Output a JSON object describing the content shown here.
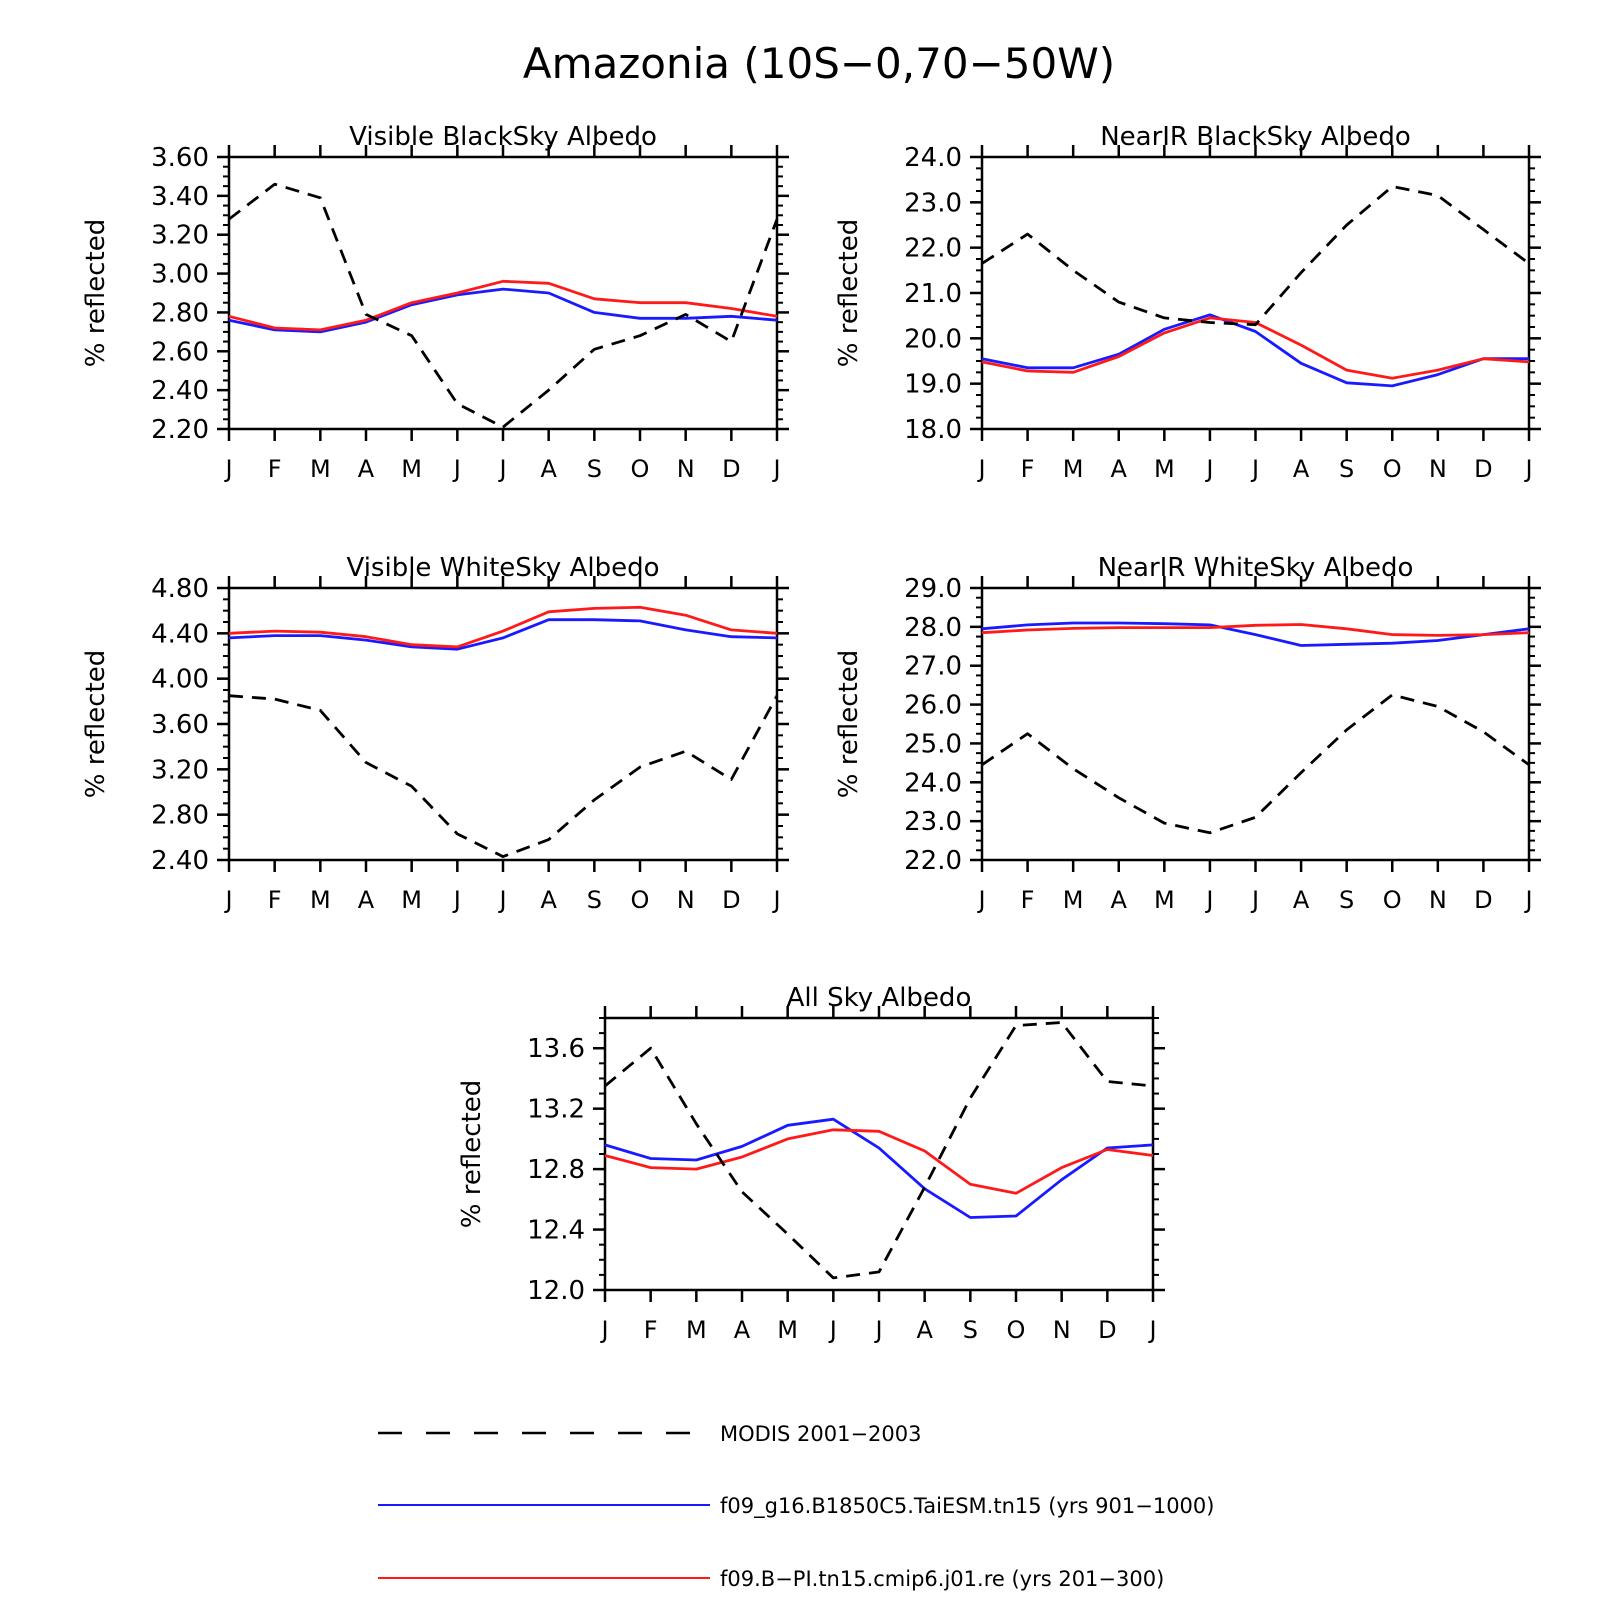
{
  "title": "Amazonia (10S−0,70−50W)",
  "months": [
    "J",
    "F",
    "M",
    "A",
    "M",
    "J",
    "J",
    "A",
    "S",
    "O",
    "N",
    "D",
    "J"
  ],
  "ylabel": "% reflected",
  "legend": [
    {
      "key": "modis",
      "label": "MODIS 2001−2003",
      "color": "#000000",
      "dash": true
    },
    {
      "key": "taiesm",
      "label": "f09_g16.B1850C5.TaiESM.tn15 (yrs 901−1000)",
      "color": "#1a1aff",
      "dash": false
    },
    {
      "key": "cmip6",
      "label": "f09.B−PI.tn15.cmip6.j01.re (yrs 201−300)",
      "color": "#ff1a1a",
      "dash": false
    }
  ],
  "chart_data": [
    {
      "type": "line",
      "title": "Visible BlackSky Albedo",
      "ylabel": "% reflected",
      "categories": [
        "J",
        "F",
        "M",
        "A",
        "M",
        "J",
        "J",
        "A",
        "S",
        "O",
        "N",
        "D",
        "J"
      ],
      "ylim": [
        2.2,
        3.6
      ],
      "yticks": [
        "2.20",
        "2.40",
        "2.60",
        "2.80",
        "3.00",
        "3.20",
        "3.40",
        "3.60"
      ],
      "series": [
        {
          "name": "MODIS 2001−2003",
          "values": [
            3.28,
            3.46,
            3.39,
            2.79,
            2.68,
            2.33,
            2.21,
            2.4,
            2.61,
            2.68,
            2.79,
            2.65,
            3.28
          ]
        },
        {
          "name": "f09_g16.B1850C5.TaiESM.tn15 (yrs 901−1000)",
          "values": [
            2.76,
            2.71,
            2.7,
            2.75,
            2.84,
            2.89,
            2.92,
            2.9,
            2.8,
            2.77,
            2.77,
            2.78,
            2.76
          ]
        },
        {
          "name": "f09.B−PI.tn15.cmip6.j01.re (yrs 201−300)",
          "values": [
            2.78,
            2.72,
            2.71,
            2.76,
            2.85,
            2.9,
            2.96,
            2.95,
            2.87,
            2.85,
            2.85,
            2.82,
            2.78
          ]
        }
      ]
    },
    {
      "type": "line",
      "title": "NearIR BlackSky Albedo",
      "ylabel": "% reflected",
      "categories": [
        "J",
        "F",
        "M",
        "A",
        "M",
        "J",
        "J",
        "A",
        "S",
        "O",
        "N",
        "D",
        "J"
      ],
      "ylim": [
        18.0,
        24.0
      ],
      "yticks": [
        "18.0",
        "19.0",
        "20.0",
        "21.0",
        "22.0",
        "23.0",
        "24.0"
      ],
      "series": [
        {
          "name": "MODIS 2001−2003",
          "values": [
            21.65,
            22.3,
            21.5,
            20.8,
            20.45,
            20.35,
            20.3,
            21.45,
            22.5,
            23.35,
            23.15,
            22.4,
            21.65
          ]
        },
        {
          "name": "f09_g16.B1850C5.TaiESM.tn15 (yrs 901−1000)",
          "values": [
            19.55,
            19.35,
            19.35,
            19.65,
            20.2,
            20.52,
            20.15,
            19.45,
            19.02,
            18.95,
            19.2,
            19.55,
            19.55
          ]
        },
        {
          "name": "f09.B−PI.tn15.cmip6.j01.re (yrs 201−300)",
          "values": [
            19.48,
            19.28,
            19.25,
            19.6,
            20.12,
            20.45,
            20.35,
            19.85,
            19.3,
            19.12,
            19.3,
            19.55,
            19.48
          ]
        }
      ]
    },
    {
      "type": "line",
      "title": "Visible WhiteSky Albedo",
      "ylabel": "% reflected",
      "categories": [
        "J",
        "F",
        "M",
        "A",
        "M",
        "J",
        "J",
        "A",
        "S",
        "O",
        "N",
        "D",
        "J"
      ],
      "ylim": [
        2.4,
        4.8
      ],
      "yticks": [
        "2.40",
        "2.80",
        "3.20",
        "3.60",
        "4.00",
        "4.40",
        "4.80"
      ],
      "series": [
        {
          "name": "MODIS 2001−2003",
          "values": [
            3.85,
            3.82,
            3.72,
            3.26,
            3.05,
            2.63,
            2.43,
            2.58,
            2.93,
            3.22,
            3.36,
            3.11,
            3.85
          ]
        },
        {
          "name": "f09_g16.B1850C5.TaiESM.tn15 (yrs 901−1000)",
          "values": [
            4.36,
            4.38,
            4.38,
            4.34,
            4.28,
            4.26,
            4.36,
            4.52,
            4.52,
            4.51,
            4.43,
            4.37,
            4.36
          ]
        },
        {
          "name": "f09.B−PI.tn15.cmip6.j01.re (yrs 201−300)",
          "values": [
            4.4,
            4.42,
            4.41,
            4.37,
            4.3,
            4.28,
            4.42,
            4.59,
            4.62,
            4.63,
            4.56,
            4.43,
            4.4
          ]
        }
      ]
    },
    {
      "type": "line",
      "title": "NearIR WhiteSky Albedo",
      "ylabel": "% reflected",
      "categories": [
        "J",
        "F",
        "M",
        "A",
        "M",
        "J",
        "J",
        "A",
        "S",
        "O",
        "N",
        "D",
        "J"
      ],
      "ylim": [
        22.0,
        29.0
      ],
      "yticks": [
        "22.0",
        "23.0",
        "24.0",
        "25.0",
        "26.0",
        "27.0",
        "28.0",
        "29.0"
      ],
      "series": [
        {
          "name": "MODIS 2001−2003",
          "values": [
            24.45,
            25.25,
            24.35,
            23.6,
            22.95,
            22.7,
            23.1,
            24.25,
            25.35,
            26.25,
            25.95,
            25.3,
            24.45
          ]
        },
        {
          "name": "f09_g16.B1850C5.TaiESM.tn15 (yrs 901−1000)",
          "values": [
            27.95,
            28.05,
            28.1,
            28.1,
            28.08,
            28.05,
            27.8,
            27.52,
            27.55,
            27.58,
            27.65,
            27.8,
            27.95
          ]
        },
        {
          "name": "f09.B−PI.tn15.cmip6.j01.re (yrs 201−300)",
          "values": [
            27.85,
            27.92,
            27.96,
            27.98,
            27.98,
            27.98,
            28.04,
            28.06,
            27.95,
            27.8,
            27.78,
            27.8,
            27.85
          ]
        }
      ]
    },
    {
      "type": "line",
      "title": "All Sky Albedo",
      "ylabel": "% reflected",
      "categories": [
        "J",
        "F",
        "M",
        "A",
        "M",
        "J",
        "J",
        "A",
        "S",
        "O",
        "N",
        "D",
        "J"
      ],
      "ylim": [
        12.0,
        13.8
      ],
      "yticks": [
        "12.0",
        "12.4",
        "12.8",
        "13.2",
        "13.6"
      ],
      "series": [
        {
          "name": "MODIS 2001−2003",
          "values": [
            13.35,
            13.6,
            13.1,
            12.65,
            12.37,
            12.08,
            12.12,
            12.68,
            13.27,
            13.75,
            13.77,
            13.38,
            13.35
          ]
        },
        {
          "name": "f09_g16.B1850C5.TaiESM.tn15 (yrs 901−1000)",
          "values": [
            12.96,
            12.87,
            12.86,
            12.95,
            13.09,
            13.13,
            12.94,
            12.67,
            12.48,
            12.49,
            12.73,
            12.94,
            12.96
          ]
        },
        {
          "name": "f09.B−PI.tn15.cmip6.j01.re (yrs 201−300)",
          "values": [
            12.89,
            12.81,
            12.8,
            12.88,
            13.0,
            13.06,
            13.05,
            12.92,
            12.7,
            12.64,
            12.81,
            12.93,
            12.89
          ]
        }
      ]
    }
  ]
}
